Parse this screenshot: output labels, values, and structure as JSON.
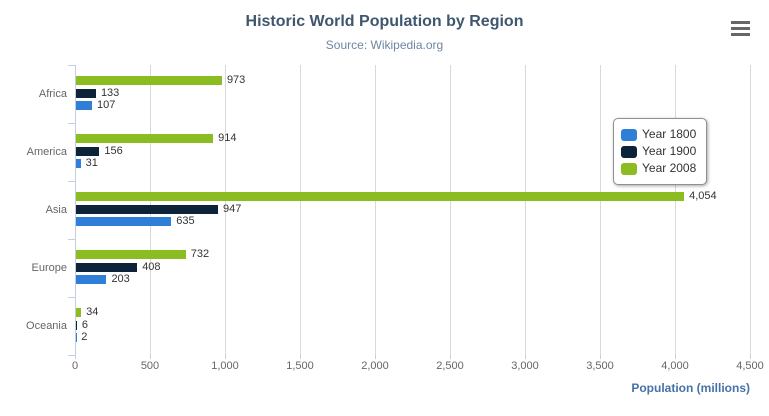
{
  "chart_data": {
    "type": "bar",
    "orientation": "horizontal",
    "title": "Historic World Population by Region",
    "subtitle": "Source: Wikipedia.org",
    "categories": [
      "Africa",
      "America",
      "Asia",
      "Europe",
      "Oceania"
    ],
    "series": [
      {
        "name": "Year 1800",
        "color": "#2f7ed8",
        "values": [
          107,
          31,
          635,
          203,
          2
        ]
      },
      {
        "name": "Year 1900",
        "color": "#0d233a",
        "values": [
          133,
          156,
          947,
          408,
          6
        ]
      },
      {
        "name": "Year 2008",
        "color": "#8bbc21",
        "values": [
          973,
          914,
          4054,
          732,
          34
        ]
      }
    ],
    "bar_order_top_to_bottom": [
      "Year 2008",
      "Year 1900",
      "Year 1800"
    ],
    "xlabel": "Population (millions)",
    "xlim": [
      0,
      4500
    ],
    "x_tick_step": 500,
    "x_tick_labels": [
      "0",
      "500",
      "1,000",
      "1,500",
      "2,000",
      "2,500",
      "3,000",
      "3,500",
      "4,000",
      "4,500"
    ],
    "grid": true,
    "legend_position": "floating-right",
    "data_labels_visible": true
  },
  "icons": {
    "context_menu": "hamburger"
  },
  "colors": {
    "background": "#ffffff",
    "title": "#3e576f",
    "subtitle": "#6d869f",
    "axis_line": "#c0d0e0",
    "grid_line": "#d9d9d9",
    "axis_label": "#666666",
    "data_label": "#333333",
    "axis_title": "#4572a7",
    "legend_border": "#909090",
    "legend_text": "#333333",
    "menu_icon": "#666666"
  }
}
